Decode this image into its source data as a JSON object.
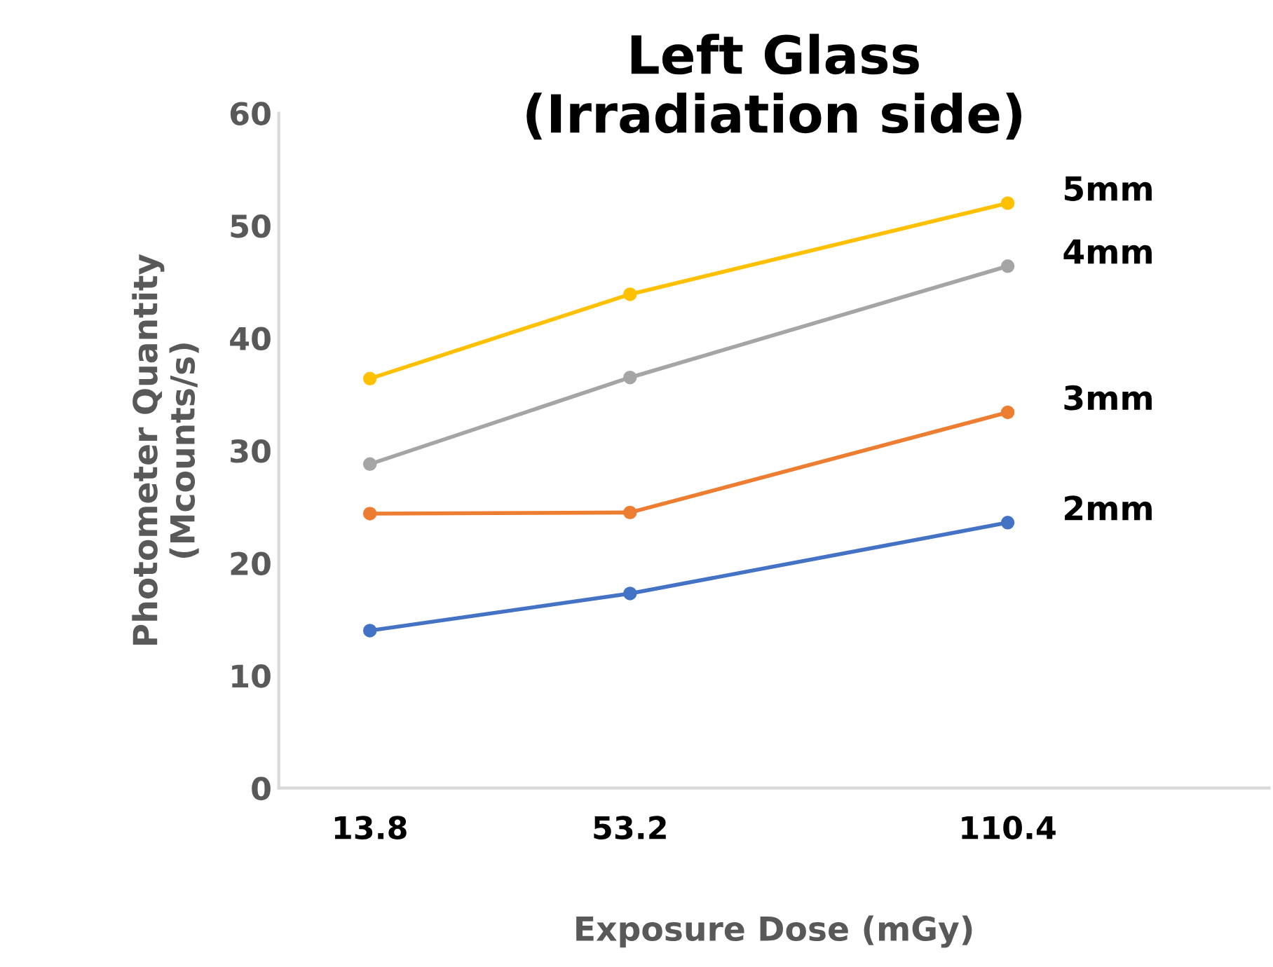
{
  "chart_data": {
    "type": "line",
    "title": "Left Glass\n(Irradiation side)",
    "xlabel": "Exposure Dose (mGy)",
    "ylabel": "Photometer Quantity\n(Mcounts/s)",
    "x": [
      13.8,
      53.2,
      110.4
    ],
    "series": [
      {
        "name": "2mm",
        "color": "#4472c4",
        "values": [
          14.0,
          17.3,
          23.6
        ]
      },
      {
        "name": "3mm",
        "color": "#ed7d31",
        "values": [
          24.4,
          24.5,
          33.4
        ]
      },
      {
        "name": "4mm",
        "color": "#a5a5a5",
        "values": [
          28.8,
          36.5,
          46.4
        ]
      },
      {
        "name": "5mm",
        "color": "#ffc000",
        "values": [
          36.4,
          43.9,
          52.0
        ]
      }
    ],
    "xlim": [
      0,
      150
    ],
    "xticks": [
      13.8,
      53.2,
      110.4
    ],
    "ylim": [
      0,
      60
    ],
    "yticks": [
      0,
      10,
      20,
      30,
      40,
      50,
      60
    ],
    "marker": "circle",
    "grid": false,
    "legend": false
  }
}
